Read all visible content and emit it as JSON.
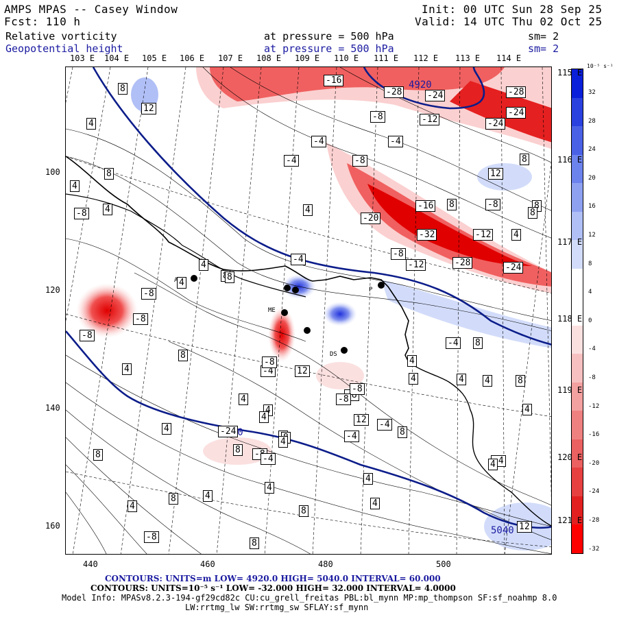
{
  "header": {
    "title": "AMPS MPAS -- Casey Window",
    "init": "Init: 00 UTC Sun 28 Sep 25",
    "fcst": "Fcst:  110 h",
    "valid": "Valid: 14 UTC Thu 02 Oct 25",
    "field1": "Relative vorticity",
    "field1_level": "at pressure =  500 hPa",
    "field1_sm": "sm= 2",
    "field2": "Geopotential height",
    "field2_level": "at pressure =  500 hPa",
    "field2_sm": "sm= 2"
  },
  "top_lon_labels": [
    "103 E",
    "104 E",
    "105 E",
    "106 E",
    "107 E",
    "108 E",
    "109 E",
    "110 E",
    "111 E",
    "112 E",
    "113 E",
    "114 E"
  ],
  "side_lon_labels": [
    "115 E",
    "116 E",
    "117 E",
    "118 E",
    "119 E",
    "120 E",
    "121 E"
  ],
  "x_axis": [
    "440",
    "460",
    "480",
    "500"
  ],
  "y_axis": [
    "100",
    "120",
    "140",
    "160"
  ],
  "colorbar": {
    "unit": "10⁻⁵ s⁻¹",
    "ticks": [
      "32",
      "28",
      "24",
      "20",
      "16",
      "12",
      "8",
      "4",
      "0",
      "-4",
      "-8",
      "-12",
      "-16",
      "-20",
      "-24",
      "-28",
      "-32"
    ],
    "colors": [
      "#0a1fd9",
      "#2a41e0",
      "#4a61e6",
      "#6c82ec",
      "#8ea1f1",
      "#b0bff6",
      "#d2dcfa",
      "#ffffff",
      "#ffffff",
      "#fbe0e0",
      "#f7c0c0",
      "#f3a0a0",
      "#ef8080",
      "#eb6060",
      "#e74040",
      "#e32020",
      "#ff0000"
    ]
  },
  "height_labels": [
    "4920",
    "5040",
    "5040"
  ],
  "vort_labels": [
    "8",
    "12",
    "4",
    "8",
    "4",
    "4",
    "-8",
    "4",
    "8",
    "-16",
    "-28",
    "-24",
    "-28",
    "-24",
    "-8",
    "-12",
    "-24",
    "-4",
    "-4",
    "-8",
    "-4",
    "12",
    "8",
    "-20",
    "-16",
    "8",
    "-8",
    "8",
    "4",
    "-32",
    "-12",
    "-8",
    "-12",
    "-28",
    "-24",
    "4",
    "8",
    "8",
    "4",
    "-8",
    "-8",
    "-4",
    "4",
    "-8",
    "12",
    "8",
    "-4",
    "4",
    "8",
    "-4",
    "12",
    "-8",
    "-4",
    "8",
    "4",
    "4",
    "4",
    "-4",
    "4",
    "8",
    "-4",
    "4",
    "4",
    "8",
    "4",
    "4",
    "8",
    "4",
    "8",
    "4",
    "8",
    "12",
    "4",
    "8",
    "-8",
    "8",
    "-8",
    "4",
    "8",
    "4",
    "-24",
    "-8",
    "-4",
    "-8",
    "-8",
    "4",
    "4"
  ],
  "stations": [
    "AR",
    "DS",
    "P",
    "ME"
  ],
  "footer": {
    "line1_contours": "CONTOURS:  UNITS=m  LOW=  4920.0        HIGH=  5040.0      INTERVAL=   60.000",
    "line2_contours": "CONTOURS:  UNITS=10⁻⁵ s⁻¹  LOW= -32.000        HIGH= 32.000     INTERVAL=  4.0000",
    "model_info": "Model Info: MPASv8.2.3-194-gf29cd82c CU:cu_grell_freitas PBL:bl_mynn MP:mp_thompson SF:sf_noahmp 8.0",
    "model_info2": "LW:rrtmg_lw SW:rrtmg_sw SFLAY:sf_mynn"
  }
}
